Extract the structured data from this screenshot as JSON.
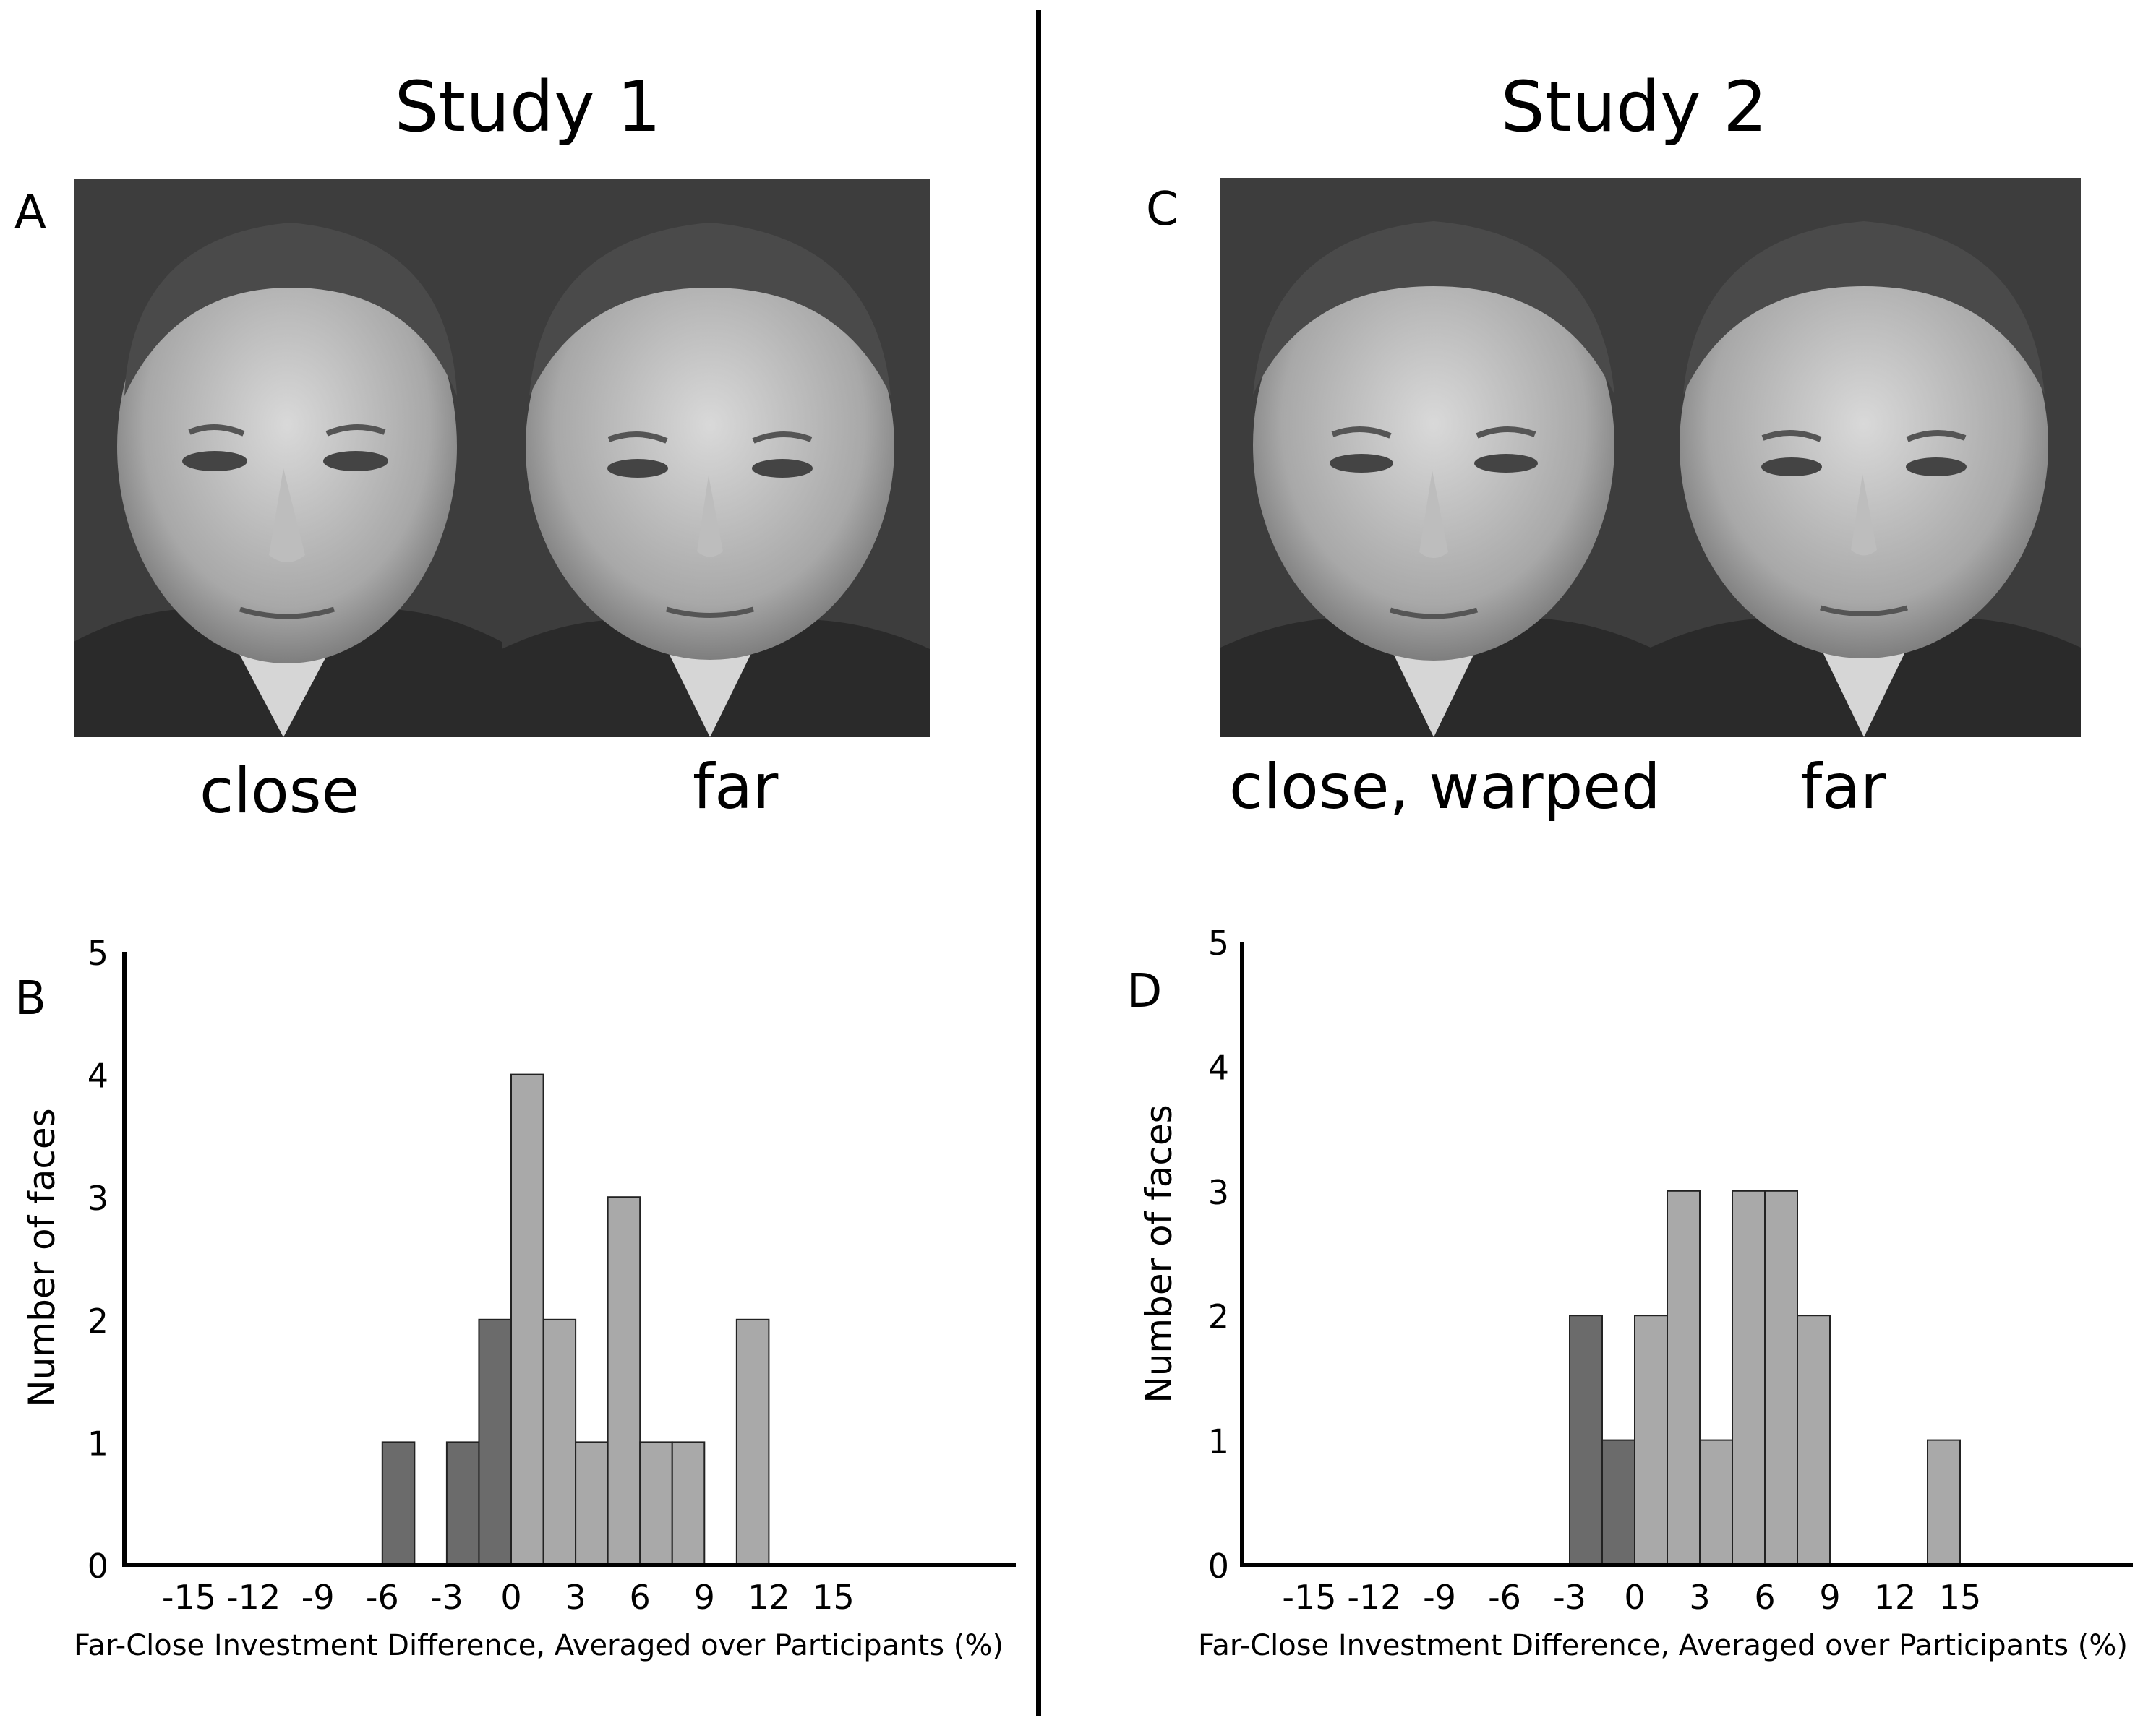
{
  "left": {
    "title": "Study 1",
    "photo_letter": "A",
    "chart_letter": "B",
    "captions": [
      "close",
      "far"
    ]
  },
  "right": {
    "title": "Study 2",
    "photo_letter": "C",
    "chart_letter": "D",
    "captions": [
      "close, warped",
      "far"
    ]
  },
  "colors": {
    "negative_bar": "#6b6b6b",
    "positive_bar": "#a9a9a9",
    "photo_bg": "#3a3a3a"
  },
  "chart_data": [
    {
      "type": "bar",
      "panel": "B",
      "xlabel": "Far-Close Investment Difference, Averaged over Participants (%)",
      "ylabel": "Number of faces",
      "ylim": [
        0,
        5
      ],
      "yticks": [
        0,
        1,
        2,
        3,
        4,
        5
      ],
      "xticks": [
        -15,
        -12,
        -9,
        -6,
        -3,
        0,
        3,
        6,
        9,
        12,
        15
      ],
      "bin_width": 1.5,
      "bars": [
        {
          "x_start": -6.0,
          "x_end": -4.5,
          "value": 1
        },
        {
          "x_start": -3.0,
          "x_end": -1.5,
          "value": 1
        },
        {
          "x_start": -1.5,
          "x_end": 0.0,
          "value": 2
        },
        {
          "x_start": 0.0,
          "x_end": 1.5,
          "value": 4
        },
        {
          "x_start": 1.5,
          "x_end": 3.0,
          "value": 2
        },
        {
          "x_start": 3.0,
          "x_end": 4.5,
          "value": 1
        },
        {
          "x_start": 4.5,
          "x_end": 6.0,
          "value": 3
        },
        {
          "x_start": 6.0,
          "x_end": 7.5,
          "value": 1
        },
        {
          "x_start": 7.5,
          "x_end": 9.0,
          "value": 1
        },
        {
          "x_start": 10.5,
          "x_end": 12.0,
          "value": 2
        }
      ]
    },
    {
      "type": "bar",
      "panel": "D",
      "xlabel": "Far-Close Investment Difference, Averaged over Participants (%)",
      "ylabel": "Number of faces",
      "ylim": [
        0,
        5
      ],
      "yticks": [
        0,
        1,
        2,
        3,
        4,
        5
      ],
      "xticks": [
        -15,
        -12,
        -9,
        -6,
        -3,
        0,
        3,
        6,
        9,
        12,
        15
      ],
      "bin_width": 1.5,
      "bars": [
        {
          "x_start": -3.0,
          "x_end": -1.5,
          "value": 2
        },
        {
          "x_start": -1.5,
          "x_end": 0.0,
          "value": 1
        },
        {
          "x_start": 0.0,
          "x_end": 1.5,
          "value": 2
        },
        {
          "x_start": 1.5,
          "x_end": 3.0,
          "value": 3
        },
        {
          "x_start": 3.0,
          "x_end": 4.5,
          "value": 1
        },
        {
          "x_start": 4.5,
          "x_end": 6.0,
          "value": 3
        },
        {
          "x_start": 6.0,
          "x_end": 7.5,
          "value": 3
        },
        {
          "x_start": 7.5,
          "x_end": 9.0,
          "value": 2
        },
        {
          "x_start": 13.5,
          "x_end": 15.0,
          "value": 1
        }
      ]
    }
  ]
}
